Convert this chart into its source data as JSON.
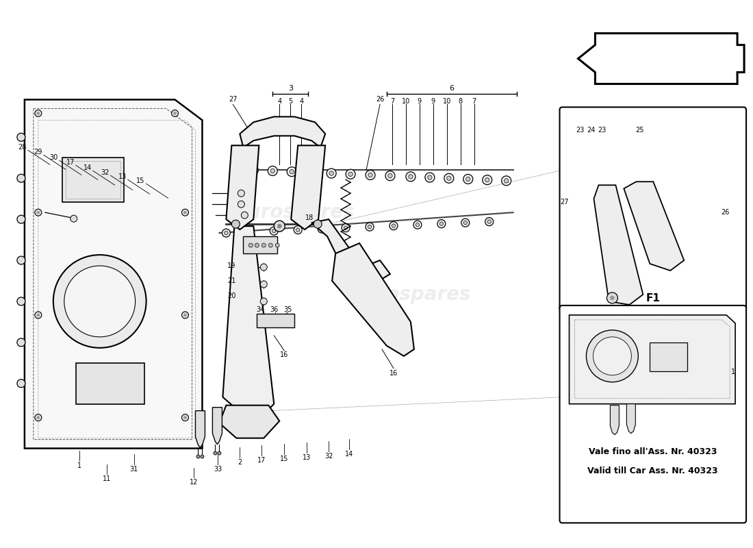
{
  "bg": "#ffffff",
  "fig_w": 11.0,
  "fig_h": 8.0,
  "dpi": 100,
  "wm_color": "#cccccc",
  "wm_alpha": 0.35,
  "validity_line1": "Vale fino all'Ass. Nr. 40323",
  "validity_line2": "Valid till Car Ass. Nr. 40323",
  "f1_label": "F1",
  "arrow_color": "black",
  "line_color": "black",
  "label_fs": 7,
  "title_fs": 9
}
